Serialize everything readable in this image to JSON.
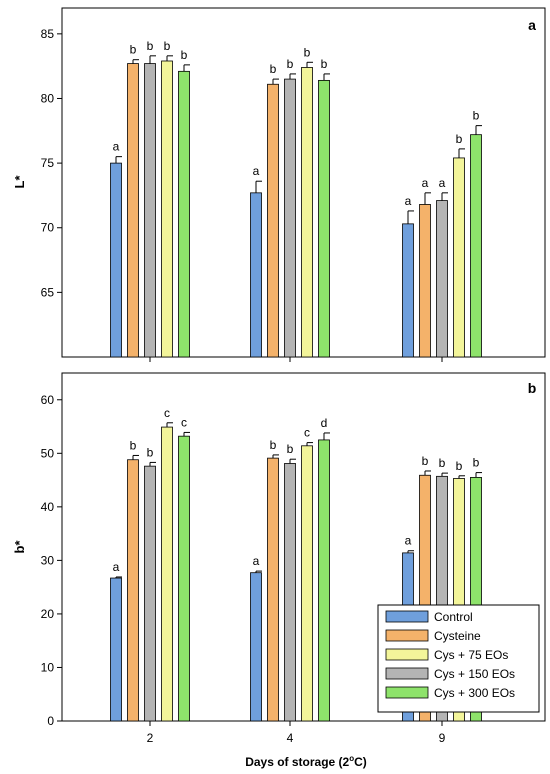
{
  "x_axis": {
    "label": "Days of storage (2",
    "label_sup": "o",
    "label_end": "C)",
    "categories": [
      "2",
      "4",
      "9"
    ]
  },
  "legend": {
    "position": "bottom-right",
    "entries": [
      {
        "name": "Control",
        "color": "#6f9fdc"
      },
      {
        "name": "Cysteine",
        "color": "#f4b26a"
      },
      {
        "name": "Cys + 75 EOs",
        "color": "#f3f59a"
      },
      {
        "name": "Cys + 150 EOs",
        "color": "#b4b4b4"
      },
      {
        "name": "Cys + 300 EOs",
        "color": "#8ee36b"
      }
    ]
  },
  "chart_data": [
    {
      "type": "bar",
      "panel_label": "a",
      "ylabel": "L*",
      "ylim": [
        60,
        87
      ],
      "yticks": [
        65,
        70,
        75,
        80,
        85
      ],
      "categories": [
        "2",
        "4",
        "9"
      ],
      "series_order": [
        "Control",
        "Cysteine",
        "Cys + 150 EOs",
        "Cys + 75 EOs",
        "Cys + 300 EOs"
      ],
      "series": [
        {
          "name": "Control",
          "color": "#6f9fdc",
          "values": [
            75.0,
            72.7,
            70.3
          ],
          "errors": [
            0.5,
            0.9,
            1.0
          ],
          "letters": [
            "a",
            "a",
            "a"
          ]
        },
        {
          "name": "Cysteine",
          "color": "#f4b26a",
          "values": [
            82.7,
            81.1,
            71.8
          ],
          "errors": [
            0.3,
            0.4,
            0.9
          ],
          "letters": [
            "b",
            "b",
            "a"
          ]
        },
        {
          "name": "Cys + 150 EOs",
          "color": "#b4b4b4",
          "values": [
            82.7,
            81.5,
            72.1
          ],
          "errors": [
            0.6,
            0.4,
            0.6
          ],
          "letters": [
            "b",
            "b",
            "a"
          ]
        },
        {
          "name": "Cys + 75 EOs",
          "color": "#f3f59a",
          "values": [
            82.9,
            82.4,
            75.4
          ],
          "errors": [
            0.4,
            0.4,
            0.7
          ],
          "letters": [
            "b",
            "b",
            "b"
          ]
        },
        {
          "name": "Cys + 300 EOs",
          "color": "#8ee36b",
          "values": [
            82.1,
            81.4,
            77.2
          ],
          "errors": [
            0.5,
            0.5,
            0.7
          ],
          "letters": [
            "b",
            "b",
            "b"
          ]
        }
      ]
    },
    {
      "type": "bar",
      "panel_label": "b",
      "ylabel": "b*",
      "ylim": [
        0,
        65
      ],
      "yticks": [
        0,
        10,
        20,
        30,
        40,
        50,
        60
      ],
      "categories": [
        "2",
        "4",
        "9"
      ],
      "series_order": [
        "Control",
        "Cysteine",
        "Cys + 150 EOs",
        "Cys + 75 EOs",
        "Cys + 300 EOs"
      ],
      "series": [
        {
          "name": "Control",
          "color": "#6f9fdc",
          "values": [
            26.7,
            27.7,
            31.4
          ],
          "errors": [
            0.2,
            0.3,
            0.4
          ],
          "letters": [
            "a",
            "a",
            "a"
          ]
        },
        {
          "name": "Cysteine",
          "color": "#f4b26a",
          "values": [
            48.8,
            49.1,
            45.9
          ],
          "errors": [
            0.8,
            0.6,
            0.8
          ],
          "letters": [
            "b",
            "b",
            "b"
          ]
        },
        {
          "name": "Cys + 150 EOs",
          "color": "#b4b4b4",
          "values": [
            47.6,
            48.1,
            45.7
          ],
          "errors": [
            0.7,
            0.8,
            0.6
          ],
          "letters": [
            "b",
            "b",
            "b"
          ]
        },
        {
          "name": "Cys + 75 EOs",
          "color": "#f3f59a",
          "values": [
            54.9,
            51.4,
            45.3
          ],
          "errors": [
            0.8,
            0.6,
            0.5
          ],
          "letters": [
            "c",
            "c",
            "b"
          ]
        },
        {
          "name": "Cys + 300 EOs",
          "color": "#8ee36b",
          "values": [
            53.2,
            52.5,
            45.5
          ],
          "errors": [
            0.7,
            1.3,
            0.9
          ],
          "letters": [
            "c",
            "d",
            "b"
          ]
        }
      ]
    }
  ]
}
